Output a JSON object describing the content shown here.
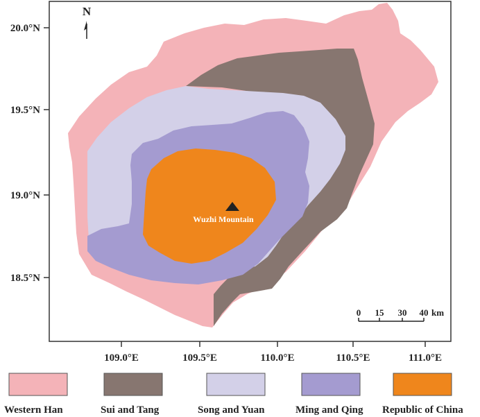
{
  "map": {
    "north_arrow": "N",
    "place_label": "Wuzhi Mountain",
    "lat_ticks": [
      "20.0°N",
      "19.5°N",
      "19.0°N",
      "18.5°N"
    ],
    "lon_ticks": [
      "109.0°E",
      "109.5°E",
      "110.0°E",
      "110.5°E",
      "111.0°E"
    ],
    "scale_bar": {
      "ticks": [
        "0",
        "15",
        "30",
        "40"
      ],
      "unit": "km"
    }
  },
  "legend": [
    {
      "label": "Western Han",
      "color": "#f4b3b8"
    },
    {
      "label": "Sui and Tang",
      "color": "#877670"
    },
    {
      "label": "Song and Yuan",
      "color": "#d3d0e8"
    },
    {
      "label": "Ming and Qing",
      "color": "#a49bd0"
    },
    {
      "label": "Republic of China",
      "color": "#ef861c"
    }
  ]
}
